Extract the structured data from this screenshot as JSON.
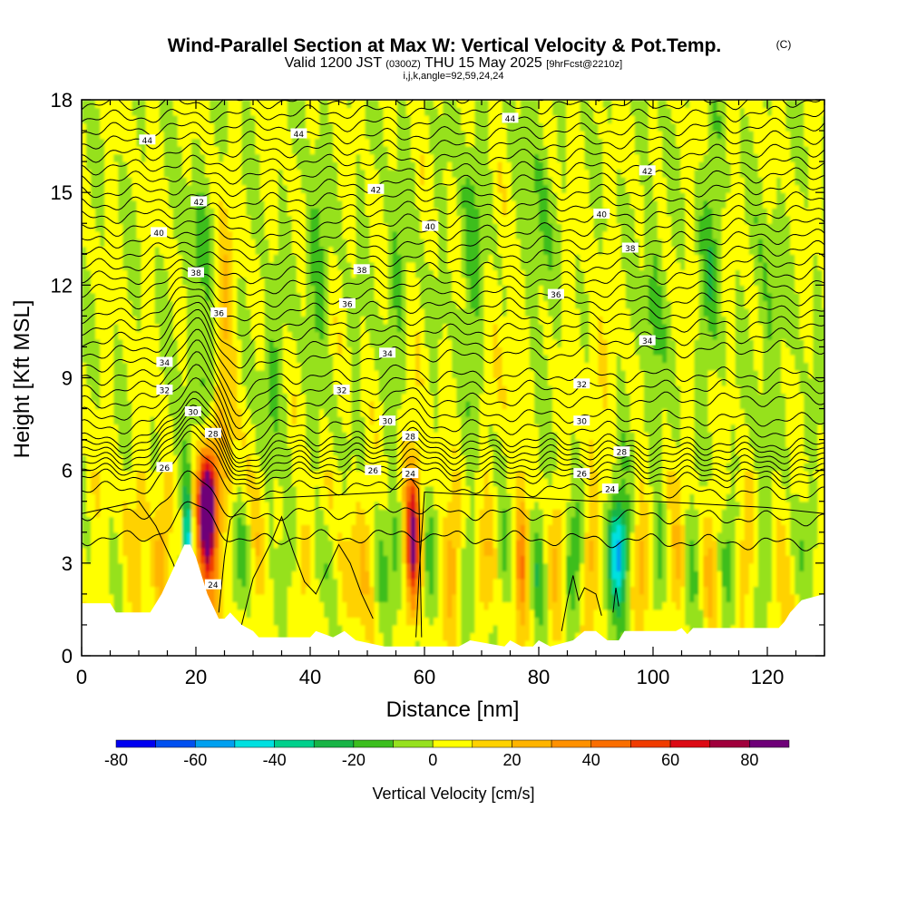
{
  "title": {
    "main": "Wind-Parallel Section at Max W: Vertical Velocity & Pot.Temp.",
    "copyright": "(C)",
    "valid_prefix": "Valid 1200 JST",
    "valid_utc": "(0300Z)",
    "valid_date": "THU 15 May 2025",
    "forecast": "[9hrFcst@2210z]",
    "indices": "i,j,k,angle=92,59,24,24"
  },
  "chart_data": {
    "type": "heatmap",
    "xlabel": "Distance [nm]",
    "ylabel": "Height [Kft MSL]",
    "xlim": [
      0,
      130
    ],
    "ylim": [
      0,
      18
    ],
    "x_ticks": [
      0,
      20,
      40,
      60,
      80,
      100,
      120
    ],
    "y_ticks": [
      0,
      3,
      6,
      9,
      12,
      15,
      18
    ],
    "colorbar": {
      "title": "Vertical Velocity [cm/s]",
      "ticks": [
        -80,
        -60,
        -40,
        -20,
        0,
        20,
        40,
        60,
        80
      ],
      "bins": [
        {
          "from": -80,
          "to": -70,
          "color": "#0000f0"
        },
        {
          "from": -70,
          "to": -60,
          "color": "#0050f0"
        },
        {
          "from": -60,
          "to": -50,
          "color": "#00a0f0"
        },
        {
          "from": -50,
          "to": -40,
          "color": "#00e0e0"
        },
        {
          "from": -40,
          "to": -30,
          "color": "#00d08c"
        },
        {
          "from": -30,
          "to": -20,
          "color": "#18b446"
        },
        {
          "from": -20,
          "to": -10,
          "color": "#3cbe1e"
        },
        {
          "from": -10,
          "to": 0,
          "color": "#96e11e"
        },
        {
          "from": 0,
          "to": 10,
          "color": "#ffff00"
        },
        {
          "from": 10,
          "to": 20,
          "color": "#ffd200"
        },
        {
          "from": 20,
          "to": 30,
          "color": "#ffb400"
        },
        {
          "from": 30,
          "to": 40,
          "color": "#ff9100"
        },
        {
          "from": 40,
          "to": 50,
          "color": "#fa6e00"
        },
        {
          "from": 50,
          "to": 60,
          "color": "#f03c00"
        },
        {
          "from": 60,
          "to": 70,
          "color": "#dc0a14"
        },
        {
          "from": 70,
          "to": 80,
          "color": "#a0003c"
        },
        {
          "from": 80,
          "to": 90,
          "color": "#6e0078"
        }
      ]
    },
    "terrain": [
      [
        0,
        1.7
      ],
      [
        5,
        1.7
      ],
      [
        6,
        1.4
      ],
      [
        12,
        1.4
      ],
      [
        13,
        1.7
      ],
      [
        14,
        2
      ],
      [
        15,
        2.4
      ],
      [
        16,
        2.8
      ],
      [
        17,
        3.2
      ],
      [
        18,
        3.6
      ],
      [
        19,
        3.6
      ],
      [
        20,
        3.2
      ],
      [
        21,
        2.6
      ],
      [
        22,
        2
      ],
      [
        23,
        1.6
      ],
      [
        24,
        1.2
      ],
      [
        25,
        1.2
      ],
      [
        26,
        1.4
      ],
      [
        27,
        1.2
      ],
      [
        28,
        1
      ],
      [
        30,
        0.8
      ],
      [
        31,
        0.6
      ],
      [
        40,
        0.6
      ],
      [
        41,
        0.8
      ],
      [
        44,
        0.6
      ],
      [
        46,
        0.8
      ],
      [
        48,
        0.5
      ],
      [
        53,
        0.3
      ],
      [
        66,
        0.3
      ],
      [
        68,
        0.5
      ],
      [
        74,
        0.3
      ],
      [
        75,
        0.5
      ],
      [
        77,
        0.3
      ],
      [
        79,
        0.3
      ],
      [
        80,
        0.5
      ],
      [
        82,
        0.3
      ],
      [
        86,
        0.5
      ],
      [
        88,
        0.8
      ],
      [
        90,
        0.8
      ],
      [
        92,
        0.5
      ],
      [
        94,
        0.5
      ],
      [
        95,
        0.8
      ],
      [
        104,
        0.8
      ],
      [
        105,
        0.9
      ],
      [
        106,
        0.7
      ],
      [
        107,
        0.9
      ],
      [
        122,
        0.9
      ],
      [
        123,
        1.1
      ],
      [
        124,
        1.4
      ],
      [
        126,
        1.8
      ],
      [
        130,
        2.0
      ]
    ],
    "wind_features": [
      {
        "x": 2,
        "z": 6.0,
        "w": 2.5,
        "hw": 2.5,
        "hh": 1.5
      },
      {
        "x": 10,
        "z": 4.5,
        "w": 8,
        "hw": 2,
        "hh": 3
      },
      {
        "x": 14,
        "z": 3.5,
        "w": 25,
        "hw": 1.5,
        "hh": 2
      },
      {
        "x": 18.5,
        "z": 3.5,
        "w": -55,
        "hw": 0.9,
        "hh": 2.2
      },
      {
        "x": 17.5,
        "z": 6.5,
        "w": -10,
        "hw": 1.8,
        "hh": 2.5
      },
      {
        "x": 22,
        "z": 5.0,
        "w": 85,
        "hw": 1.5,
        "hh": 1.7
      },
      {
        "x": 22,
        "z": 4.0,
        "w": 35,
        "hw": 2.5,
        "hh": 3
      },
      {
        "x": 22.5,
        "z": 9,
        "w": -18,
        "hw": 1.5,
        "hh": 3
      },
      {
        "x": 25,
        "z": 11,
        "w": 20,
        "hw": 2,
        "hh": 3
      },
      {
        "x": 20,
        "z": 13,
        "w": -14,
        "hw": 1.8,
        "hh": 3
      },
      {
        "x": 26,
        "z": 7,
        "w": 12,
        "hw": 2.5,
        "hh": 2
      },
      {
        "x": 28,
        "z": 3,
        "w": -18,
        "hw": 1.5,
        "hh": 2
      },
      {
        "x": 31,
        "z": 3,
        "w": 12,
        "hw": 1.2,
        "hh": 2
      },
      {
        "x": 33,
        "z": 9,
        "w": -12,
        "hw": 2,
        "hh": 3
      },
      {
        "x": 36,
        "z": 3,
        "w": -18,
        "hw": 1.5,
        "hh": 2
      },
      {
        "x": 39,
        "z": 3,
        "w": 18,
        "hw": 1.2,
        "hh": 1.6
      },
      {
        "x": 41,
        "z": 13,
        "w": -15,
        "hw": 1.8,
        "hh": 3
      },
      {
        "x": 43,
        "z": 3,
        "w": -12,
        "hw": 2,
        "hh": 1.8
      },
      {
        "x": 47,
        "z": 3,
        "w": 12,
        "hw": 2,
        "hh": 2
      },
      {
        "x": 50,
        "z": 3,
        "w": 10,
        "hw": 2,
        "hh": 2
      },
      {
        "x": 52,
        "z": 3,
        "w": -12,
        "hw": 1.5,
        "hh": 2
      },
      {
        "x": 55,
        "z": 3.5,
        "w": -18,
        "hw": 1.5,
        "hh": 2.5
      },
      {
        "x": 58,
        "z": 3.5,
        "w": 62,
        "hw": 1.1,
        "hh": 2
      },
      {
        "x": 58,
        "z": 5,
        "w": 20,
        "hw": 2.2,
        "hh": 2.8
      },
      {
        "x": 61,
        "z": 3,
        "w": -20,
        "hw": 1.5,
        "hh": 2
      },
      {
        "x": 65,
        "z": 3,
        "w": 25,
        "hw": 1.5,
        "hh": 2
      },
      {
        "x": 68,
        "z": 3,
        "w": -14,
        "hw": 1.5,
        "hh": 2
      },
      {
        "x": 71,
        "z": 3,
        "w": 14,
        "hw": 1.5,
        "hh": 2
      },
      {
        "x": 74,
        "z": 3,
        "w": -12,
        "hw": 1.5,
        "hh": 2
      },
      {
        "x": 77,
        "z": 3,
        "w": 35,
        "hw": 1.2,
        "hh": 2
      },
      {
        "x": 80,
        "z": 3,
        "w": -18,
        "hw": 1.5,
        "hh": 2
      },
      {
        "x": 83,
        "z": 3,
        "w": 15,
        "hw": 1.5,
        "hh": 2
      },
      {
        "x": 86,
        "z": 3,
        "w": -25,
        "hw": 1.5,
        "hh": 2
      },
      {
        "x": 89,
        "z": 3,
        "w": 22,
        "hw": 1.5,
        "hh": 2
      },
      {
        "x": 94,
        "z": 3.4,
        "w": -42,
        "hw": 1.6,
        "hh": 1.7
      },
      {
        "x": 94,
        "z": 3.3,
        "w": -14,
        "hw": 3,
        "hh": 2.5
      },
      {
        "x": 98,
        "z": 3,
        "w": 22,
        "hw": 1.5,
        "hh": 2
      },
      {
        "x": 101,
        "z": 3,
        "w": -14,
        "hw": 1.5,
        "hh": 2
      },
      {
        "x": 104,
        "z": 3,
        "w": 15,
        "hw": 1.5,
        "hh": 2
      },
      {
        "x": 107,
        "z": 3,
        "w": -14,
        "hw": 1.5,
        "hh": 2
      },
      {
        "x": 110,
        "z": 3,
        "w": 15,
        "hw": 1.5,
        "hh": 2
      },
      {
        "x": 113,
        "z": 3,
        "w": -16,
        "hw": 1.5,
        "hh": 2
      },
      {
        "x": 116,
        "z": 3,
        "w": 15,
        "hw": 1.5,
        "hh": 2
      },
      {
        "x": 119,
        "z": 3,
        "w": -14,
        "hw": 1.5,
        "hh": 2
      },
      {
        "x": 122,
        "z": 3,
        "w": 10,
        "hw": 1.5,
        "hh": 2
      },
      {
        "x": 126,
        "z": 4,
        "w": -12,
        "hw": 1.5,
        "hh": 2
      },
      {
        "x": 68,
        "z": 13,
        "w": -14,
        "hw": 2,
        "hh": 4
      },
      {
        "x": 80,
        "z": 14,
        "w": -12,
        "hw": 2,
        "hh": 4
      },
      {
        "x": 100,
        "z": 11,
        "w": -16,
        "hw": 1.5,
        "hh": 4
      },
      {
        "x": 110,
        "z": 13,
        "w": -14,
        "hw": 2,
        "hh": 4
      },
      {
        "x": 120,
        "z": 11,
        "w": -12,
        "hw": 2,
        "hh": 4
      },
      {
        "x": 55,
        "z": 12,
        "w": -10,
        "hw": 2,
        "hh": 3
      },
      {
        "x": 90,
        "z": 9,
        "w": 10,
        "hw": 2.5,
        "hh": 3
      },
      {
        "x": 75,
        "z": 10,
        "w": 8,
        "hw": 2.5,
        "hh": 3
      }
    ],
    "theta_contours": {
      "levels": [
        23.5,
        24,
        24.5,
        25,
        25.5,
        26,
        26.5,
        27,
        27.5,
        28,
        28.5,
        29,
        29.5,
        30,
        30.5,
        31,
        31.5,
        32,
        32.5,
        33,
        33.5,
        34,
        34.5,
        35,
        35.5,
        36,
        36.5,
        37,
        37.5,
        38,
        38.5,
        39,
        39.5,
        40,
        40.5,
        41,
        41.5,
        42,
        42.5,
        43,
        43.5,
        44,
        44.5,
        45
      ],
      "base_heights_kft": [
        3.8,
        4.6,
        5.4,
        5.8,
        6.0,
        6.2,
        6.4,
        6.6,
        6.8,
        7.0,
        7.4,
        7.8,
        8.2,
        8.6,
        9.0,
        9.4,
        9.8,
        10.2,
        10.6,
        11.0,
        11.4,
        11.8,
        12.2,
        12.6,
        13.0,
        13.4,
        13.8,
        14.2,
        14.6,
        15.0,
        15.4,
        15.8,
        16.2,
        16.6,
        17.0,
        17.4,
        17.8,
        18.2,
        18.6,
        19.0,
        19.4,
        19.8,
        20.2,
        20.6
      ],
      "labels": [
        {
          "text": "44",
          "x": 11.5,
          "z": 16.7
        },
        {
          "text": "44",
          "x": 38,
          "z": 16.9
        },
        {
          "text": "44",
          "x": 75,
          "z": 17.4
        },
        {
          "text": "42",
          "x": 20.5,
          "z": 14.7
        },
        {
          "text": "42",
          "x": 51.5,
          "z": 15.1
        },
        {
          "text": "42",
          "x": 99,
          "z": 15.7
        },
        {
          "text": "40",
          "x": 13.5,
          "z": 13.7
        },
        {
          "text": "40",
          "x": 61,
          "z": 13.9
        },
        {
          "text": "40",
          "x": 91,
          "z": 14.3
        },
        {
          "text": "38",
          "x": 20,
          "z": 12.4
        },
        {
          "text": "38",
          "x": 49,
          "z": 12.5
        },
        {
          "text": "38",
          "x": 96,
          "z": 13.2
        },
        {
          "text": "36",
          "x": 24,
          "z": 11.1
        },
        {
          "text": "36",
          "x": 46.5,
          "z": 11.4
        },
        {
          "text": "36",
          "x": 83,
          "z": 11.7
        },
        {
          "text": "34",
          "x": 14.5,
          "z": 9.5
        },
        {
          "text": "34",
          "x": 53.5,
          "z": 9.8
        },
        {
          "text": "34",
          "x": 99,
          "z": 10.2
        },
        {
          "text": "32",
          "x": 14.5,
          "z": 8.6
        },
        {
          "text": "32",
          "x": 45.5,
          "z": 8.6
        },
        {
          "text": "32",
          "x": 87.5,
          "z": 8.8
        },
        {
          "text": "30",
          "x": 19.5,
          "z": 7.9
        },
        {
          "text": "30",
          "x": 53.5,
          "z": 7.6
        },
        {
          "text": "30",
          "x": 87.5,
          "z": 7.6
        },
        {
          "text": "28",
          "x": 23,
          "z": 7.2
        },
        {
          "text": "28",
          "x": 57.5,
          "z": 7.1
        },
        {
          "text": "28",
          "x": 94.5,
          "z": 6.6
        },
        {
          "text": "26",
          "x": 14.5,
          "z": 6.1
        },
        {
          "text": "26",
          "x": 51,
          "z": 6.0
        },
        {
          "text": "26",
          "x": 87.5,
          "z": 5.9
        },
        {
          "text": "24",
          "x": 57.5,
          "z": 5.9
        },
        {
          "text": "24",
          "x": 92.5,
          "z": 5.4
        },
        {
          "text": "24",
          "x": 23,
          "z": 2.3
        }
      ]
    }
  }
}
